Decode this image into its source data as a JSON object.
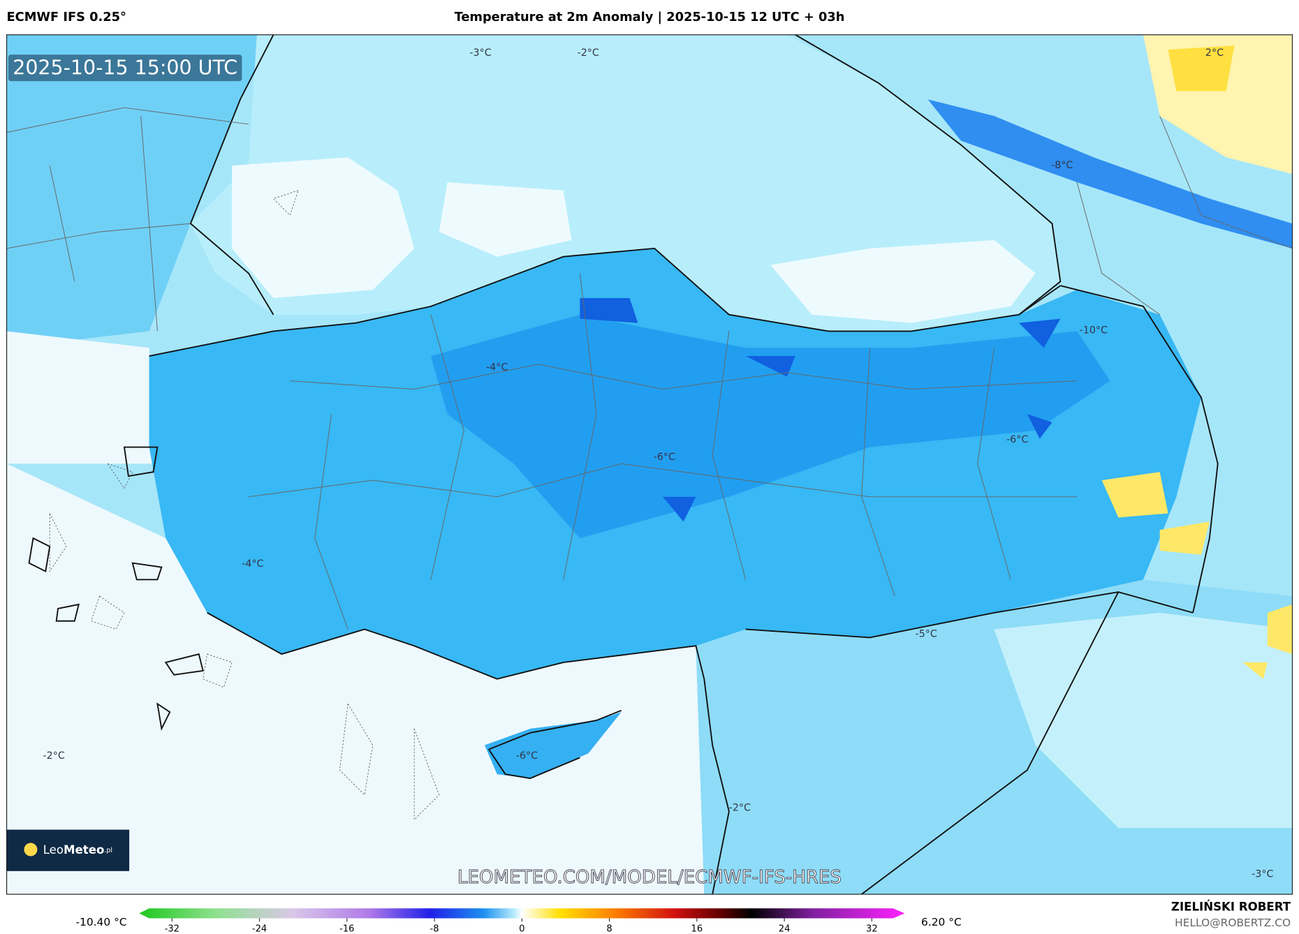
{
  "header": {
    "model": "ECMWF IFS 0.25°",
    "title": "Temperature at 2m Anomaly | 2025-10-15 12 UTC + 03h"
  },
  "map": {
    "timestamp": "2025-10-15 15:00 UTC",
    "contour_labels": [
      "-3°C",
      "-2°C",
      "2°C",
      "-8°C",
      "-10°C",
      "-4°C",
      "-6°C",
      "-6°C",
      "-4°C",
      "-5°C",
      "-2°C",
      "-6°C",
      "-2°C",
      "-3°C"
    ],
    "watermark": "LEOMETEO.COM/MODEL/ECMWF-IFS-HRES",
    "logo": {
      "name": "Leo",
      "name_bold": "Meteo",
      "suffix": ".pl"
    }
  },
  "colorbar": {
    "min_label": "-10.40 °C",
    "max_label": "6.20 °C",
    "lim": [
      -35,
      35
    ],
    "ticks": [
      -32,
      -24,
      -16,
      -8,
      0,
      8,
      16,
      24,
      32
    ]
  },
  "footer": {
    "author": "ZIELIŃSKI ROBERT",
    "email": "HELLO@ROBERTZ.CO"
  }
}
